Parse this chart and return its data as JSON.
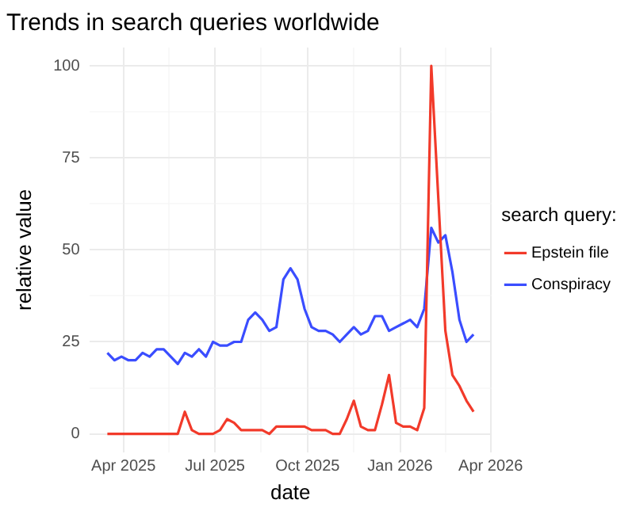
{
  "chart_data": {
    "type": "line",
    "title": "Trends in search queries worldwide",
    "xlabel": "date",
    "ylabel": "relative value",
    "legend_title": "search query:",
    "legend": "right",
    "grid": true,
    "marker": "none",
    "line_style": "solid",
    "x": [
      "2025-03-16",
      "2025-03-23",
      "2025-03-30",
      "2025-04-06",
      "2025-04-13",
      "2025-04-20",
      "2025-04-27",
      "2025-05-04",
      "2025-05-11",
      "2025-05-18",
      "2025-05-25",
      "2025-06-01",
      "2025-06-08",
      "2025-06-15",
      "2025-06-22",
      "2025-06-29",
      "2025-07-06",
      "2025-07-13",
      "2025-07-20",
      "2025-07-27",
      "2025-08-03",
      "2025-08-10",
      "2025-08-17",
      "2025-08-24",
      "2025-08-31",
      "2025-09-07",
      "2025-09-14",
      "2025-09-21",
      "2025-09-28",
      "2025-10-05",
      "2025-10-12",
      "2025-10-19",
      "2025-10-26",
      "2025-11-02",
      "2025-11-09",
      "2025-11-16",
      "2025-11-23",
      "2025-11-30",
      "2025-12-07",
      "2025-12-14",
      "2025-12-21",
      "2025-12-28",
      "2026-01-04",
      "2026-01-11",
      "2026-01-18",
      "2026-01-25",
      "2026-02-01",
      "2026-02-08",
      "2026-02-15",
      "2026-02-22",
      "2026-03-01",
      "2026-03-08",
      "2026-03-15"
    ],
    "xlim": [
      "2025-02-26",
      "2026-04-02"
    ],
    "xticks": [
      {
        "value": "2025-04-01",
        "label": "Apr 2025"
      },
      {
        "value": "2025-05-16",
        "label": null
      },
      {
        "value": "2025-07-01",
        "label": "Jul 2025"
      },
      {
        "value": "2025-08-16",
        "label": null
      },
      {
        "value": "2025-10-01",
        "label": "Oct 2025"
      },
      {
        "value": "2025-11-16",
        "label": null
      },
      {
        "value": "2026-01-01",
        "label": "Jan 2026"
      },
      {
        "value": "2026-02-15",
        "label": null
      },
      {
        "value": "2026-04-01",
        "label": "Apr 2026"
      }
    ],
    "ylim": [
      -5,
      105
    ],
    "yticks": [
      0,
      {
        "value": 12.5,
        "label": null
      },
      25,
      {
        "value": 37.5,
        "label": null
      },
      50,
      {
        "value": 62.5,
        "label": null
      },
      75,
      {
        "value": 87.5,
        "label": null
      },
      100
    ],
    "series": [
      {
        "name": "Epstein file",
        "color": "#f23a2a",
        "values": [
          0,
          0,
          0,
          0,
          0,
          0,
          0,
          0,
          0,
          0,
          0,
          6,
          1,
          0,
          0,
          0,
          1,
          4,
          3,
          1,
          1,
          1,
          1,
          0,
          2,
          2,
          2,
          2,
          2,
          1,
          1,
          1,
          0,
          0,
          4,
          9,
          2,
          1,
          1,
          8,
          16,
          3,
          2,
          2,
          1,
          7,
          100,
          64,
          28,
          16,
          13,
          9,
          6
        ]
      },
      {
        "name": "Conspiracy",
        "color": "#3a4dff",
        "values": [
          22,
          20,
          21,
          20,
          20,
          22,
          21,
          23,
          23,
          21,
          19,
          22,
          21,
          23,
          21,
          25,
          24,
          24,
          25,
          25,
          31,
          33,
          31,
          28,
          29,
          42,
          45,
          42,
          34,
          29,
          28,
          28,
          27,
          25,
          27,
          29,
          27,
          28,
          32,
          32,
          28,
          29,
          30,
          31,
          29,
          34,
          56,
          52,
          54,
          44,
          31,
          25,
          27
        ]
      }
    ]
  }
}
